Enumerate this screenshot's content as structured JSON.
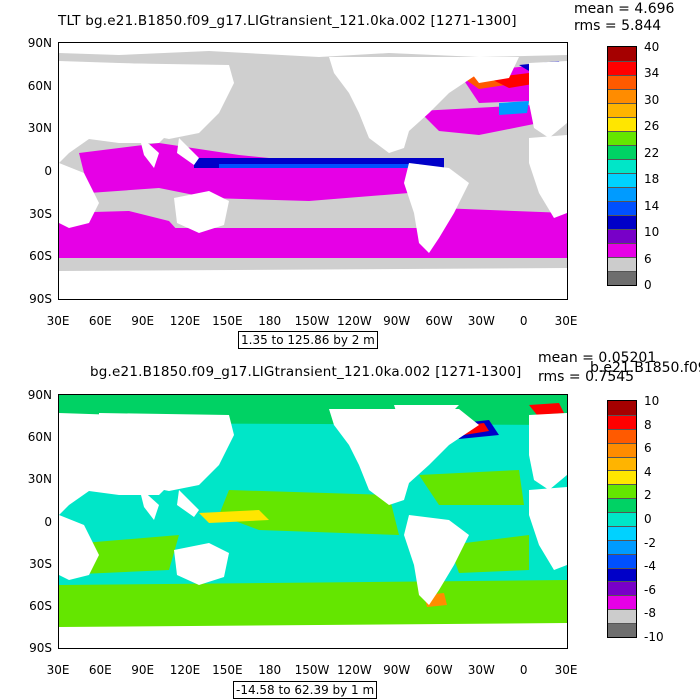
{
  "panels": [
    {
      "title": "TLT bg.e21.B1850.f09_g17.LIGtransient_121.0ka.002 [1271-1300]",
      "mean": "mean = 4.696",
      "rms": "rms = 5.844",
      "level_range": "1.35 to 125.86 by 2 m",
      "y_ticks": [
        "90N",
        "60N",
        "30N",
        "0",
        "30S",
        "60S",
        "90S"
      ],
      "x_ticks": [
        "30E",
        "60E",
        "90E",
        "120E",
        "150E",
        "180",
        "150W",
        "120W",
        "90W",
        "60W",
        "30W",
        "0",
        "30E"
      ],
      "colorbar_labels": [
        "40",
        "34",
        "30",
        "26",
        "22",
        "18",
        "14",
        "10",
        "6",
        "0"
      ],
      "colorbar_colors": [
        "#a50000",
        "#ff0000",
        "#ff5a00",
        "#ff8c00",
        "#ffb400",
        "#ffe600",
        "#64e600",
        "#00d264",
        "#00e6c8",
        "#00d2ff",
        "#009bff",
        "#0050ff",
        "#0000c8",
        "#7800c8",
        "#e600e6",
        "#cccccc",
        "#6e6e6e"
      ]
    },
    {
      "title": "bg.e21.B1850.f09_g17.LIGtransient_121.0ka.002 [1271-1300]",
      "overlap_text": "b.e21.B1850.f09",
      "mean": "mean = 0.05201",
      "rms": "rms = 0.7545",
      "level_range": "-14.58 to 62.39 by 1 m",
      "y_ticks": [
        "90N",
        "60N",
        "30N",
        "0",
        "30S",
        "60S",
        "90S"
      ],
      "x_ticks": [
        "30E",
        "60E",
        "90E",
        "120E",
        "150E",
        "180",
        "150W",
        "120W",
        "90W",
        "60W",
        "30W",
        "0",
        "30E"
      ],
      "colorbar_labels": [
        "10",
        "8",
        "6",
        "4",
        "2",
        "0",
        "-2",
        "-4",
        "-6",
        "-8",
        "-10"
      ],
      "colorbar_colors": [
        "#a50000",
        "#ff0000",
        "#ff5a00",
        "#ff8c00",
        "#ffb400",
        "#ffe600",
        "#64e600",
        "#00d264",
        "#00e6c8",
        "#00d2ff",
        "#009bff",
        "#0050ff",
        "#0000c8",
        "#7800c8",
        "#e600e6",
        "#cccccc",
        "#6e6e6e"
      ]
    }
  ],
  "colors": {
    "land": "#ffffff",
    "missing": "#cfcfcf",
    "ocean_low": "#e600e6",
    "ocean_mid": "#00e6c8",
    "ocean_green": "#64e600"
  }
}
